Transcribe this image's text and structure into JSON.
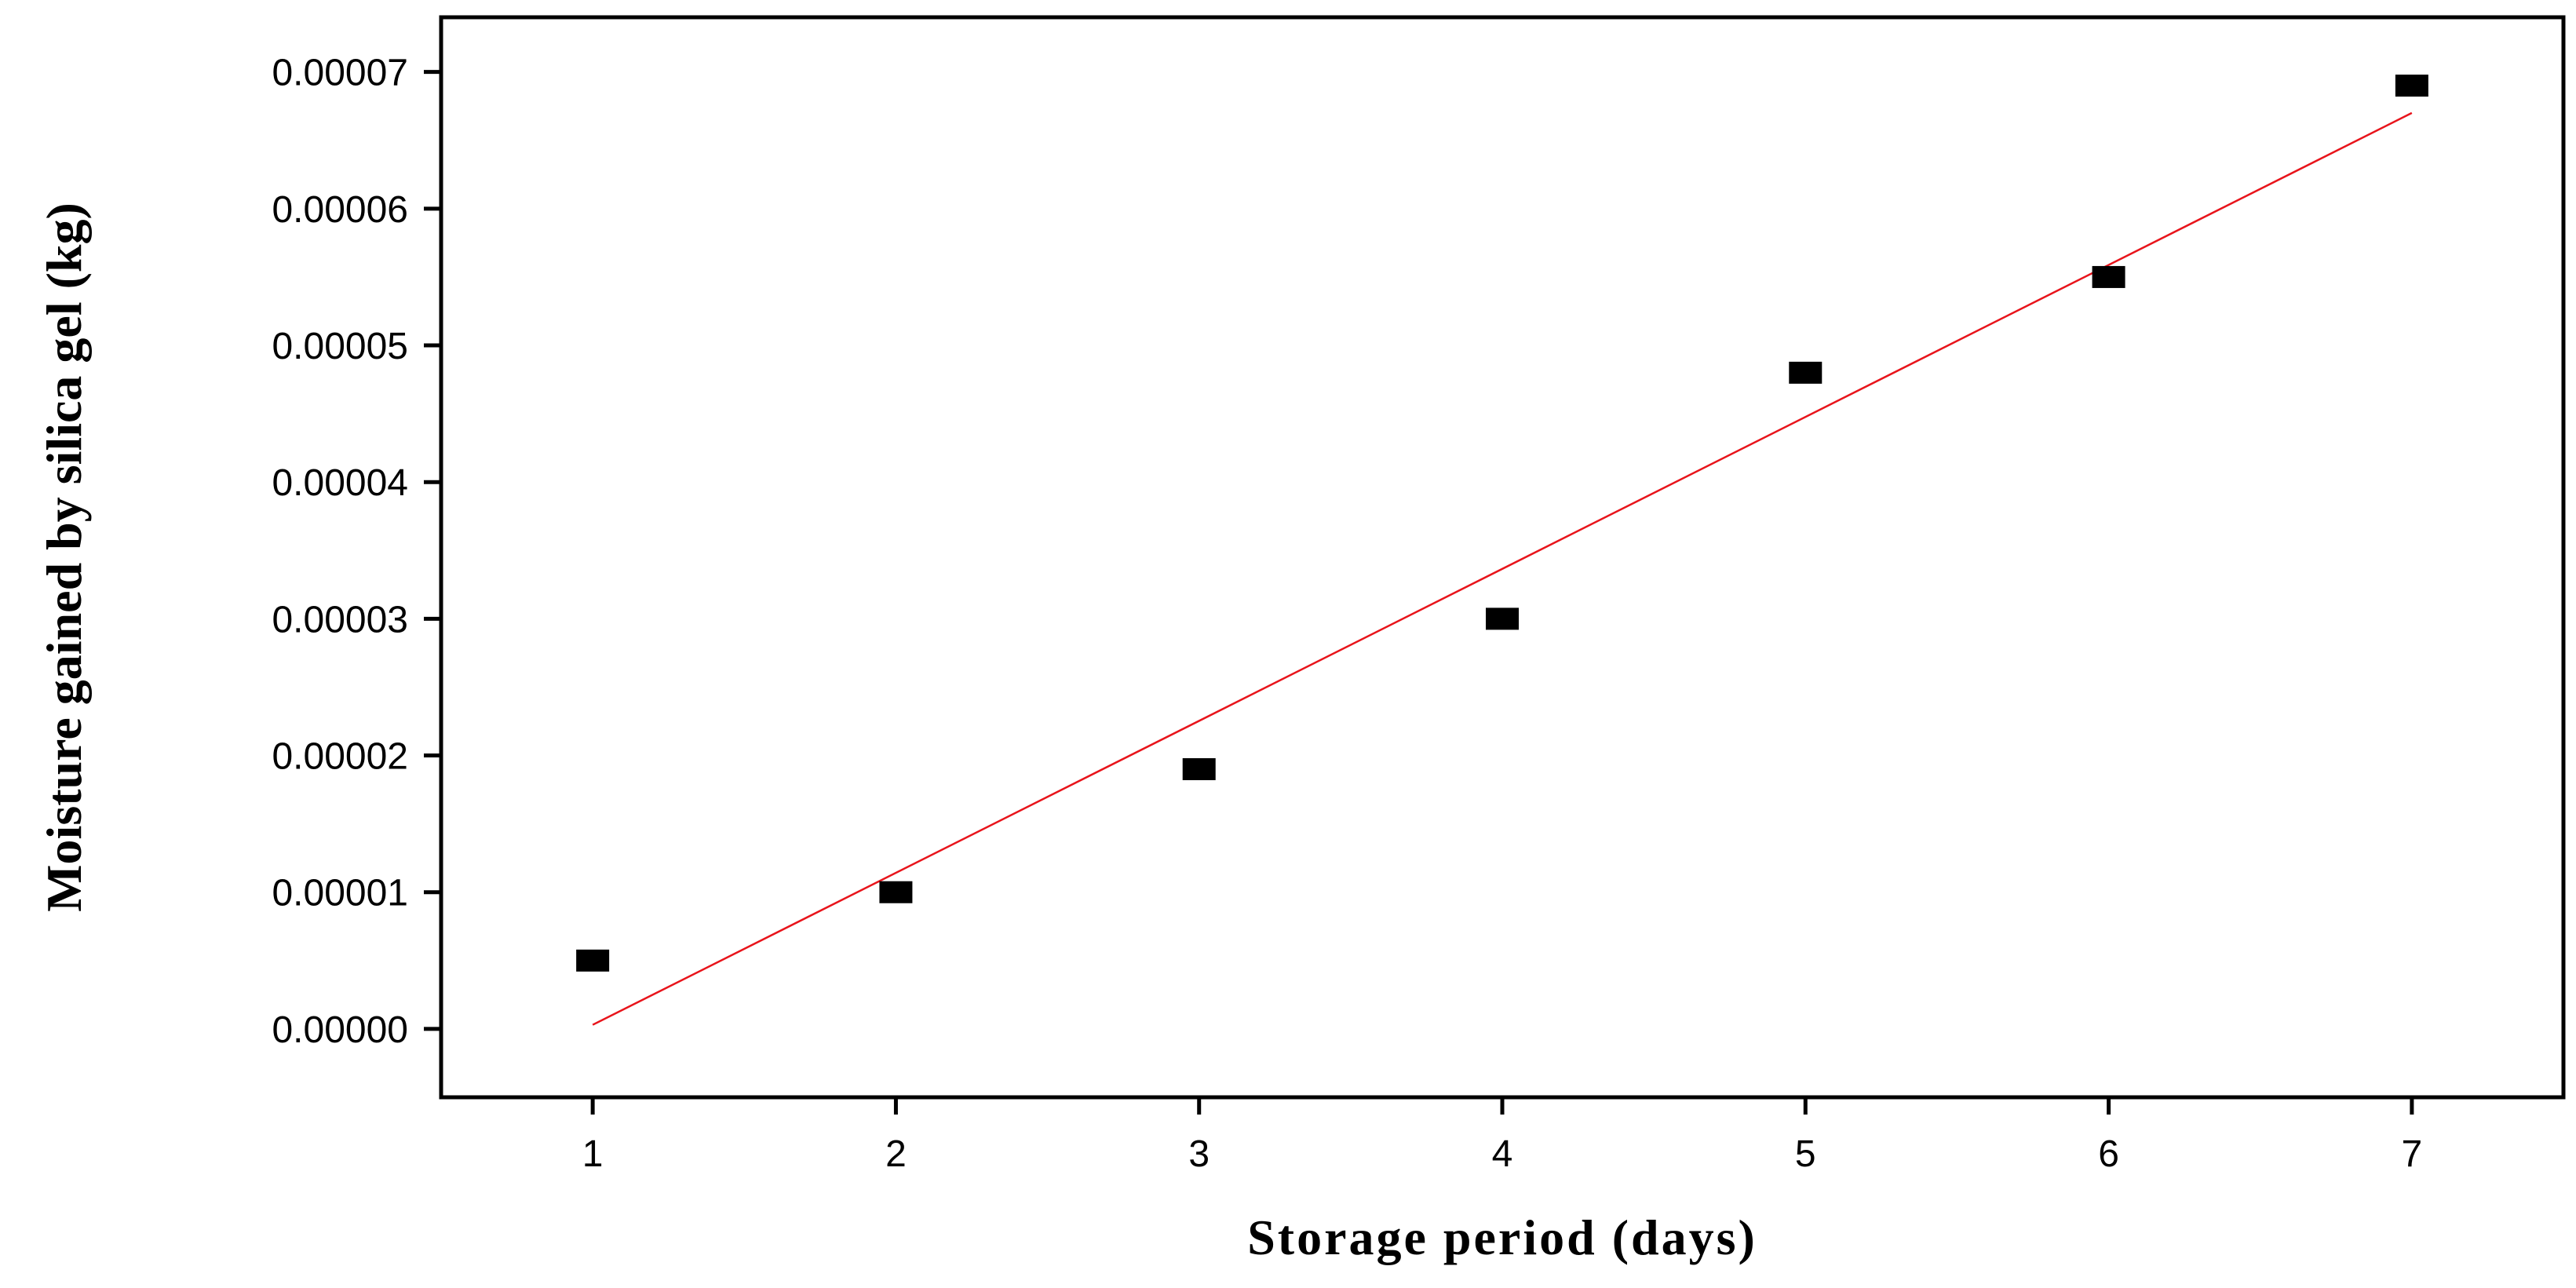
{
  "chart_data": {
    "type": "scatter",
    "title": "",
    "xlabel": "Storage period (days)",
    "ylabel": "Moisture gained by silica gel (kg)",
    "xlim": [
      0.5,
      7.5
    ],
    "ylim": [
      -5e-06,
      7.4e-05
    ],
    "x_ticks": [
      "1",
      "2",
      "3",
      "4",
      "5",
      "6",
      "7"
    ],
    "y_ticks": [
      "0.00000",
      "0.00001",
      "0.00002",
      "0.00003",
      "0.00004",
      "0.00005",
      "0.00006",
      "0.00007"
    ],
    "grid": false,
    "legend": "none",
    "series": [
      {
        "x": [
          1,
          2,
          3,
          4,
          5,
          6,
          7
        ],
        "y": [
          5e-06,
          1e-05,
          1.9e-05,
          3e-05,
          4.8e-05,
          5.5e-05,
          6.9e-05
        ],
        "marker": "square",
        "color": "#000000"
      }
    ],
    "fit_line": {
      "x": [
        1,
        7
      ],
      "y": [
        3e-07,
        6.7e-05
      ],
      "color": "#e8141b"
    }
  }
}
